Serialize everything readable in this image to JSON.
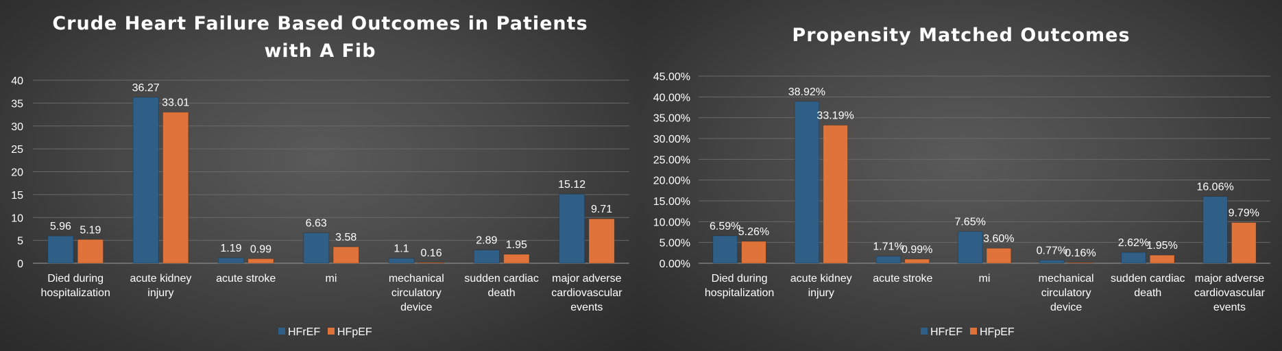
{
  "charts": [
    {
      "id": "left",
      "chart_data": {
        "type": "bar",
        "title": "Crude Heart Failure Based Outcomes in Patients with A Fib",
        "title_lines": [
          "Crude Heart Failure Based Outcomes in Patients",
          "with A Fib"
        ],
        "categories": [
          [
            "Died during",
            "hospitalization"
          ],
          [
            "acute kidney",
            "injury"
          ],
          [
            "acute stroke"
          ],
          [
            "mi"
          ],
          [
            "mechanical",
            "circulatory",
            "device"
          ],
          [
            "sudden cardiac",
            "death"
          ],
          [
            "major adverse",
            "cardiovascular",
            "events"
          ]
        ],
        "series": [
          {
            "name": "HFrEF",
            "color": "#2f5f86",
            "values": [
              5.96,
              36.27,
              1.19,
              6.63,
              1.1,
              2.89,
              15.12
            ],
            "labels": [
              "5.96",
              "36.27",
              "1.19",
              "6.63",
              "1.1",
              "2.89",
              "15.12"
            ]
          },
          {
            "name": "HFpEF",
            "color": "#e0733a",
            "values": [
              5.19,
              33.01,
              0.99,
              3.58,
              0.16,
              1.95,
              9.71
            ],
            "labels": [
              "5.19",
              "33.01",
              "0.99",
              "3.58",
              "0.16",
              "1.95",
              "9.71"
            ]
          }
        ],
        "ylim": [
          0,
          40
        ],
        "yticks": [
          0,
          5,
          10,
          15,
          20,
          25,
          30,
          35,
          40
        ],
        "ytick_labels": [
          "0",
          "5",
          "10",
          "15",
          "20",
          "25",
          "30",
          "35",
          "40"
        ],
        "legend_position": "bottom",
        "grid": true
      }
    },
    {
      "id": "right",
      "chart_data": {
        "type": "bar",
        "title": "Propensity Matched Outcomes",
        "title_lines": [
          "Propensity Matched Outcomes"
        ],
        "categories": [
          [
            "Died during",
            "hospitalization"
          ],
          [
            "acute kidney",
            "injury"
          ],
          [
            "acute stroke"
          ],
          [
            "mi"
          ],
          [
            "mechanical",
            "circulatory",
            "device"
          ],
          [
            "sudden cardiac",
            "death"
          ],
          [
            "major adverse",
            "cardiovascular",
            "events"
          ]
        ],
        "series": [
          {
            "name": "HFrEF",
            "color": "#2f5f86",
            "values": [
              6.59,
              38.92,
              1.71,
              7.65,
              0.77,
              2.62,
              16.06
            ],
            "labels": [
              "6.59%",
              "38.92%",
              "1.71%",
              "7.65%",
              "0.77%",
              "2.62%",
              "16.06%"
            ]
          },
          {
            "name": "HFpEF",
            "color": "#e0733a",
            "values": [
              5.26,
              33.19,
              0.99,
              3.6,
              0.16,
              1.95,
              9.79
            ],
            "labels": [
              "5.26%",
              "33.19%",
              "0.99%",
              "3.60%",
              "0.16%",
              "1.95%",
              "9.79%"
            ]
          }
        ],
        "ylim": [
          0,
          45
        ],
        "yticks": [
          0,
          5,
          10,
          15,
          20,
          25,
          30,
          35,
          40,
          45
        ],
        "ytick_labels": [
          "0.00%",
          "5.00%",
          "10.00%",
          "15.00%",
          "20.00%",
          "25.00%",
          "30.00%",
          "35.00%",
          "40.00%",
          "45.00%"
        ],
        "legend_position": "bottom",
        "grid": true
      }
    }
  ]
}
